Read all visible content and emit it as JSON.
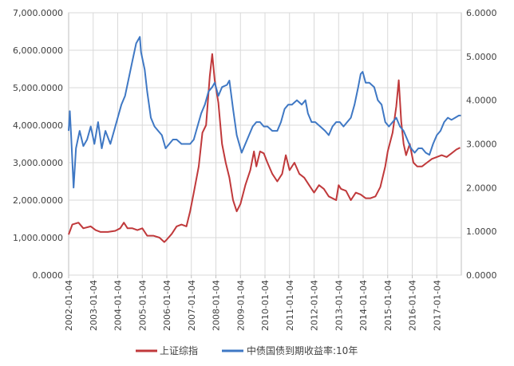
{
  "chart_data": {
    "type": "line",
    "title": "",
    "grid": true,
    "legend_position": "bottom",
    "x": {
      "ticks": [
        "2002-01-04",
        "2003-01-04",
        "2004-01-04",
        "2005-01-04",
        "2006-01-04",
        "2007-01-04",
        "2008-01-04",
        "2009-01-04",
        "2010-01-04",
        "2011-01-04",
        "2012-01-04",
        "2013-01-04",
        "2014-01-04",
        "2015-01-04",
        "2016-01-04",
        "2017-01-04"
      ],
      "range": [
        2002.0,
        2018.0
      ]
    },
    "y_left": {
      "ticks": [
        "0.0000",
        "1,000.0000",
        "2,000.0000",
        "3,000.0000",
        "4,000.0000",
        "5,000.0000",
        "6,000.0000",
        "7,000.0000"
      ],
      "range": [
        0,
        7000
      ]
    },
    "y_right": {
      "ticks": [
        "0.0000",
        "1.0000",
        "2.0000",
        "3.0000",
        "4.0000",
        "5.0000",
        "6.0000"
      ],
      "range": [
        0,
        6
      ]
    },
    "series": [
      {
        "name": "上证综指",
        "color": "#C0393B",
        "axis": "left",
        "points": [
          [
            2002.0,
            1080
          ],
          [
            2002.15,
            1350
          ],
          [
            2002.4,
            1400
          ],
          [
            2002.6,
            1250
          ],
          [
            2002.9,
            1300
          ],
          [
            2003.1,
            1200
          ],
          [
            2003.3,
            1150
          ],
          [
            2003.6,
            1150
          ],
          [
            2003.9,
            1180
          ],
          [
            2004.1,
            1250
          ],
          [
            2004.25,
            1400
          ],
          [
            2004.4,
            1250
          ],
          [
            2004.6,
            1250
          ],
          [
            2004.8,
            1200
          ],
          [
            2005.0,
            1250
          ],
          [
            2005.2,
            1050
          ],
          [
            2005.45,
            1050
          ],
          [
            2005.7,
            1000
          ],
          [
            2005.9,
            880
          ],
          [
            2006.0,
            950
          ],
          [
            2006.2,
            1100
          ],
          [
            2006.4,
            1300
          ],
          [
            2006.6,
            1350
          ],
          [
            2006.8,
            1300
          ],
          [
            2006.95,
            1700
          ],
          [
            2007.1,
            2200
          ],
          [
            2007.3,
            2900
          ],
          [
            2007.45,
            3800
          ],
          [
            2007.6,
            4000
          ],
          [
            2007.75,
            5300
          ],
          [
            2007.85,
            5900
          ],
          [
            2007.95,
            5200
          ],
          [
            2008.1,
            4600
          ],
          [
            2008.25,
            3500
          ],
          [
            2008.4,
            3000
          ],
          [
            2008.55,
            2600
          ],
          [
            2008.7,
            2000
          ],
          [
            2008.85,
            1700
          ],
          [
            2009.0,
            1900
          ],
          [
            2009.2,
            2400
          ],
          [
            2009.4,
            2800
          ],
          [
            2009.55,
            3300
          ],
          [
            2009.65,
            2900
          ],
          [
            2009.8,
            3300
          ],
          [
            2009.95,
            3250
          ],
          [
            2010.1,
            3000
          ],
          [
            2010.3,
            2700
          ],
          [
            2010.5,
            2500
          ],
          [
            2010.7,
            2700
          ],
          [
            2010.85,
            3200
          ],
          [
            2011.0,
            2800
          ],
          [
            2011.2,
            3000
          ],
          [
            2011.4,
            2700
          ],
          [
            2011.6,
            2600
          ],
          [
            2011.8,
            2400
          ],
          [
            2012.0,
            2200
          ],
          [
            2012.2,
            2400
          ],
          [
            2012.4,
            2300
          ],
          [
            2012.6,
            2100
          ],
          [
            2012.9,
            2000
          ],
          [
            2013.0,
            2400
          ],
          [
            2013.1,
            2300
          ],
          [
            2013.3,
            2250
          ],
          [
            2013.5,
            2000
          ],
          [
            2013.7,
            2200
          ],
          [
            2013.9,
            2150
          ],
          [
            2014.1,
            2050
          ],
          [
            2014.3,
            2050
          ],
          [
            2014.5,
            2100
          ],
          [
            2014.7,
            2350
          ],
          [
            2014.9,
            2900
          ],
          [
            2015.0,
            3300
          ],
          [
            2015.2,
            3800
          ],
          [
            2015.35,
            4500
          ],
          [
            2015.45,
            5200
          ],
          [
            2015.55,
            4100
          ],
          [
            2015.65,
            3500
          ],
          [
            2015.75,
            3200
          ],
          [
            2015.9,
            3500
          ],
          [
            2016.05,
            3000
          ],
          [
            2016.2,
            2900
          ],
          [
            2016.4,
            2900
          ],
          [
            2016.6,
            3000
          ],
          [
            2016.8,
            3100
          ],
          [
            2017.0,
            3150
          ],
          [
            2017.2,
            3200
          ],
          [
            2017.4,
            3150
          ],
          [
            2017.6,
            3250
          ],
          [
            2017.8,
            3350
          ],
          [
            2017.95,
            3400
          ]
        ]
      },
      {
        "name": "中债国债到期收益率:10年",
        "color": "#3F78C4",
        "axis": "right",
        "points": [
          [
            2002.0,
            3.3
          ],
          [
            2002.05,
            3.75
          ],
          [
            2002.1,
            3.2
          ],
          [
            2002.2,
            2.0
          ],
          [
            2002.3,
            2.9
          ],
          [
            2002.45,
            3.3
          ],
          [
            2002.6,
            2.95
          ],
          [
            2002.75,
            3.1
          ],
          [
            2002.9,
            3.4
          ],
          [
            2003.05,
            3.0
          ],
          [
            2003.2,
            3.5
          ],
          [
            2003.35,
            2.9
          ],
          [
            2003.5,
            3.3
          ],
          [
            2003.7,
            3.0
          ],
          [
            2003.85,
            3.3
          ],
          [
            2004.0,
            3.6
          ],
          [
            2004.15,
            3.9
          ],
          [
            2004.3,
            4.1
          ],
          [
            2004.45,
            4.5
          ],
          [
            2004.6,
            4.9
          ],
          [
            2004.75,
            5.3
          ],
          [
            2004.9,
            5.45
          ],
          [
            2004.95,
            5.1
          ],
          [
            2005.1,
            4.7
          ],
          [
            2005.2,
            4.2
          ],
          [
            2005.35,
            3.6
          ],
          [
            2005.5,
            3.4
          ],
          [
            2005.65,
            3.3
          ],
          [
            2005.8,
            3.2
          ],
          [
            2005.95,
            2.9
          ],
          [
            2006.1,
            3.0
          ],
          [
            2006.25,
            3.1
          ],
          [
            2006.4,
            3.1
          ],
          [
            2006.6,
            3.0
          ],
          [
            2006.8,
            3.0
          ],
          [
            2006.95,
            3.0
          ],
          [
            2007.1,
            3.1
          ],
          [
            2007.25,
            3.4
          ],
          [
            2007.4,
            3.7
          ],
          [
            2007.55,
            3.9
          ],
          [
            2007.7,
            4.2
          ],
          [
            2007.85,
            4.3
          ],
          [
            2007.95,
            4.4
          ],
          [
            2008.1,
            4.1
          ],
          [
            2008.25,
            4.3
          ],
          [
            2008.45,
            4.35
          ],
          [
            2008.55,
            4.45
          ],
          [
            2008.7,
            3.8
          ],
          [
            2008.85,
            3.2
          ],
          [
            2008.95,
            3.0
          ],
          [
            2009.05,
            2.8
          ],
          [
            2009.2,
            3.0
          ],
          [
            2009.35,
            3.2
          ],
          [
            2009.5,
            3.4
          ],
          [
            2009.65,
            3.5
          ],
          [
            2009.8,
            3.5
          ],
          [
            2009.95,
            3.4
          ],
          [
            2010.1,
            3.4
          ],
          [
            2010.3,
            3.3
          ],
          [
            2010.5,
            3.3
          ],
          [
            2010.65,
            3.5
          ],
          [
            2010.8,
            3.8
          ],
          [
            2010.95,
            3.9
          ],
          [
            2011.1,
            3.9
          ],
          [
            2011.3,
            4.0
          ],
          [
            2011.5,
            3.9
          ],
          [
            2011.65,
            4.0
          ],
          [
            2011.75,
            3.7
          ],
          [
            2011.9,
            3.5
          ],
          [
            2012.05,
            3.5
          ],
          [
            2012.25,
            3.4
          ],
          [
            2012.45,
            3.3
          ],
          [
            2012.6,
            3.2
          ],
          [
            2012.75,
            3.4
          ],
          [
            2012.9,
            3.5
          ],
          [
            2013.05,
            3.5
          ],
          [
            2013.2,
            3.4
          ],
          [
            2013.35,
            3.5
          ],
          [
            2013.5,
            3.6
          ],
          [
            2013.65,
            3.9
          ],
          [
            2013.8,
            4.3
          ],
          [
            2013.9,
            4.6
          ],
          [
            2013.98,
            4.65
          ],
          [
            2014.1,
            4.4
          ],
          [
            2014.25,
            4.4
          ],
          [
            2014.45,
            4.3
          ],
          [
            2014.6,
            4.0
          ],
          [
            2014.75,
            3.9
          ],
          [
            2014.9,
            3.5
          ],
          [
            2015.05,
            3.4
          ],
          [
            2015.2,
            3.5
          ],
          [
            2015.35,
            3.6
          ],
          [
            2015.5,
            3.4
          ],
          [
            2015.65,
            3.3
          ],
          [
            2015.8,
            3.1
          ],
          [
            2015.95,
            2.9
          ],
          [
            2016.1,
            2.8
          ],
          [
            2016.25,
            2.9
          ],
          [
            2016.4,
            2.9
          ],
          [
            2016.55,
            2.8
          ],
          [
            2016.7,
            2.75
          ],
          [
            2016.85,
            3.0
          ],
          [
            2017.0,
            3.2
          ],
          [
            2017.15,
            3.3
          ],
          [
            2017.3,
            3.5
          ],
          [
            2017.45,
            3.6
          ],
          [
            2017.6,
            3.55
          ],
          [
            2017.75,
            3.6
          ],
          [
            2017.9,
            3.65
          ],
          [
            2017.98,
            3.65
          ]
        ]
      }
    ]
  }
}
